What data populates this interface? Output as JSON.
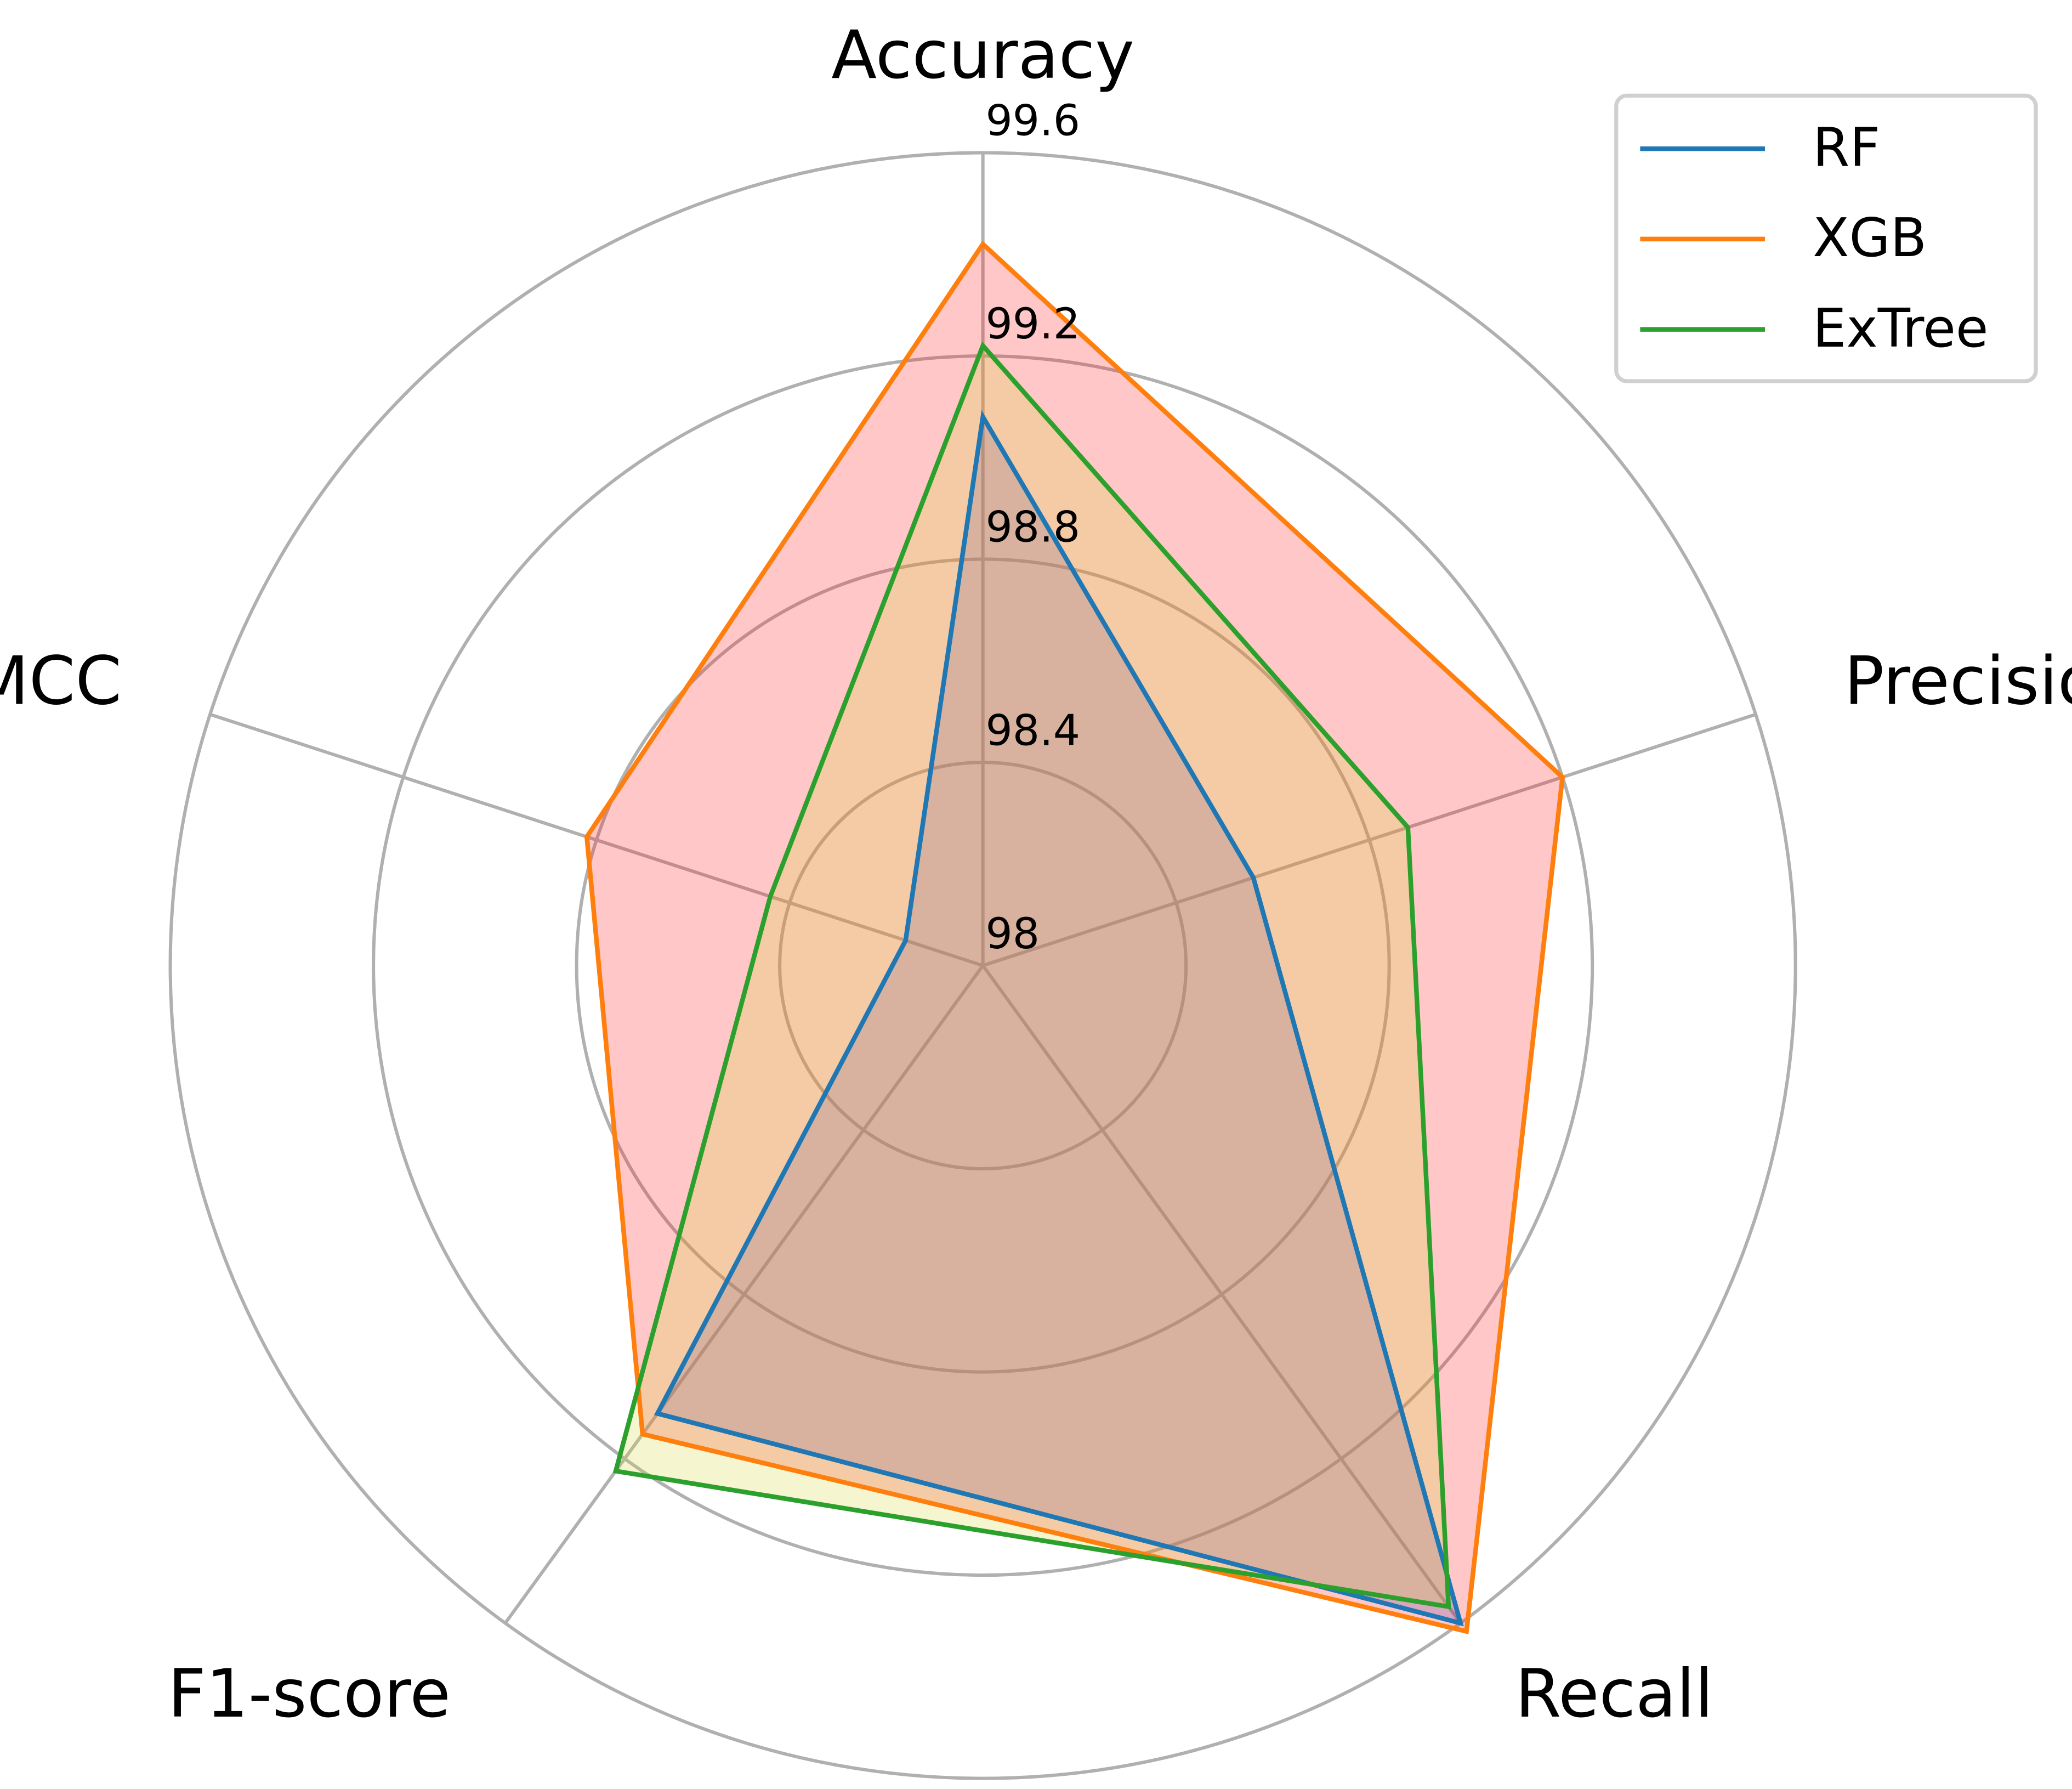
{
  "chart_data": {
    "type": "radar",
    "categories": [
      "Accuracy",
      "Precision",
      "Recall",
      "F1-score",
      "MCC"
    ],
    "series": [
      {
        "name": "RF",
        "color": "#1f77b4",
        "fill": "#3050d0",
        "values": [
          99.08,
          98.56,
          99.6,
          99.09,
          98.16
        ]
      },
      {
        "name": "XGB",
        "color": "#ff7f0e",
        "fill": "#ff2020",
        "values": [
          99.42,
          99.2,
          99.62,
          99.14,
          98.82
        ]
      },
      {
        "name": "ExTree",
        "color": "#2ca02c",
        "fill": "#d8d840",
        "values": [
          99.22,
          98.88,
          99.56,
          99.23,
          98.44
        ]
      }
    ],
    "ylim": [
      98,
      99.6
    ],
    "yticks": [
      98,
      98.4,
      98.8,
      99.2,
      99.6
    ],
    "grid": true,
    "legend": "upper right"
  }
}
